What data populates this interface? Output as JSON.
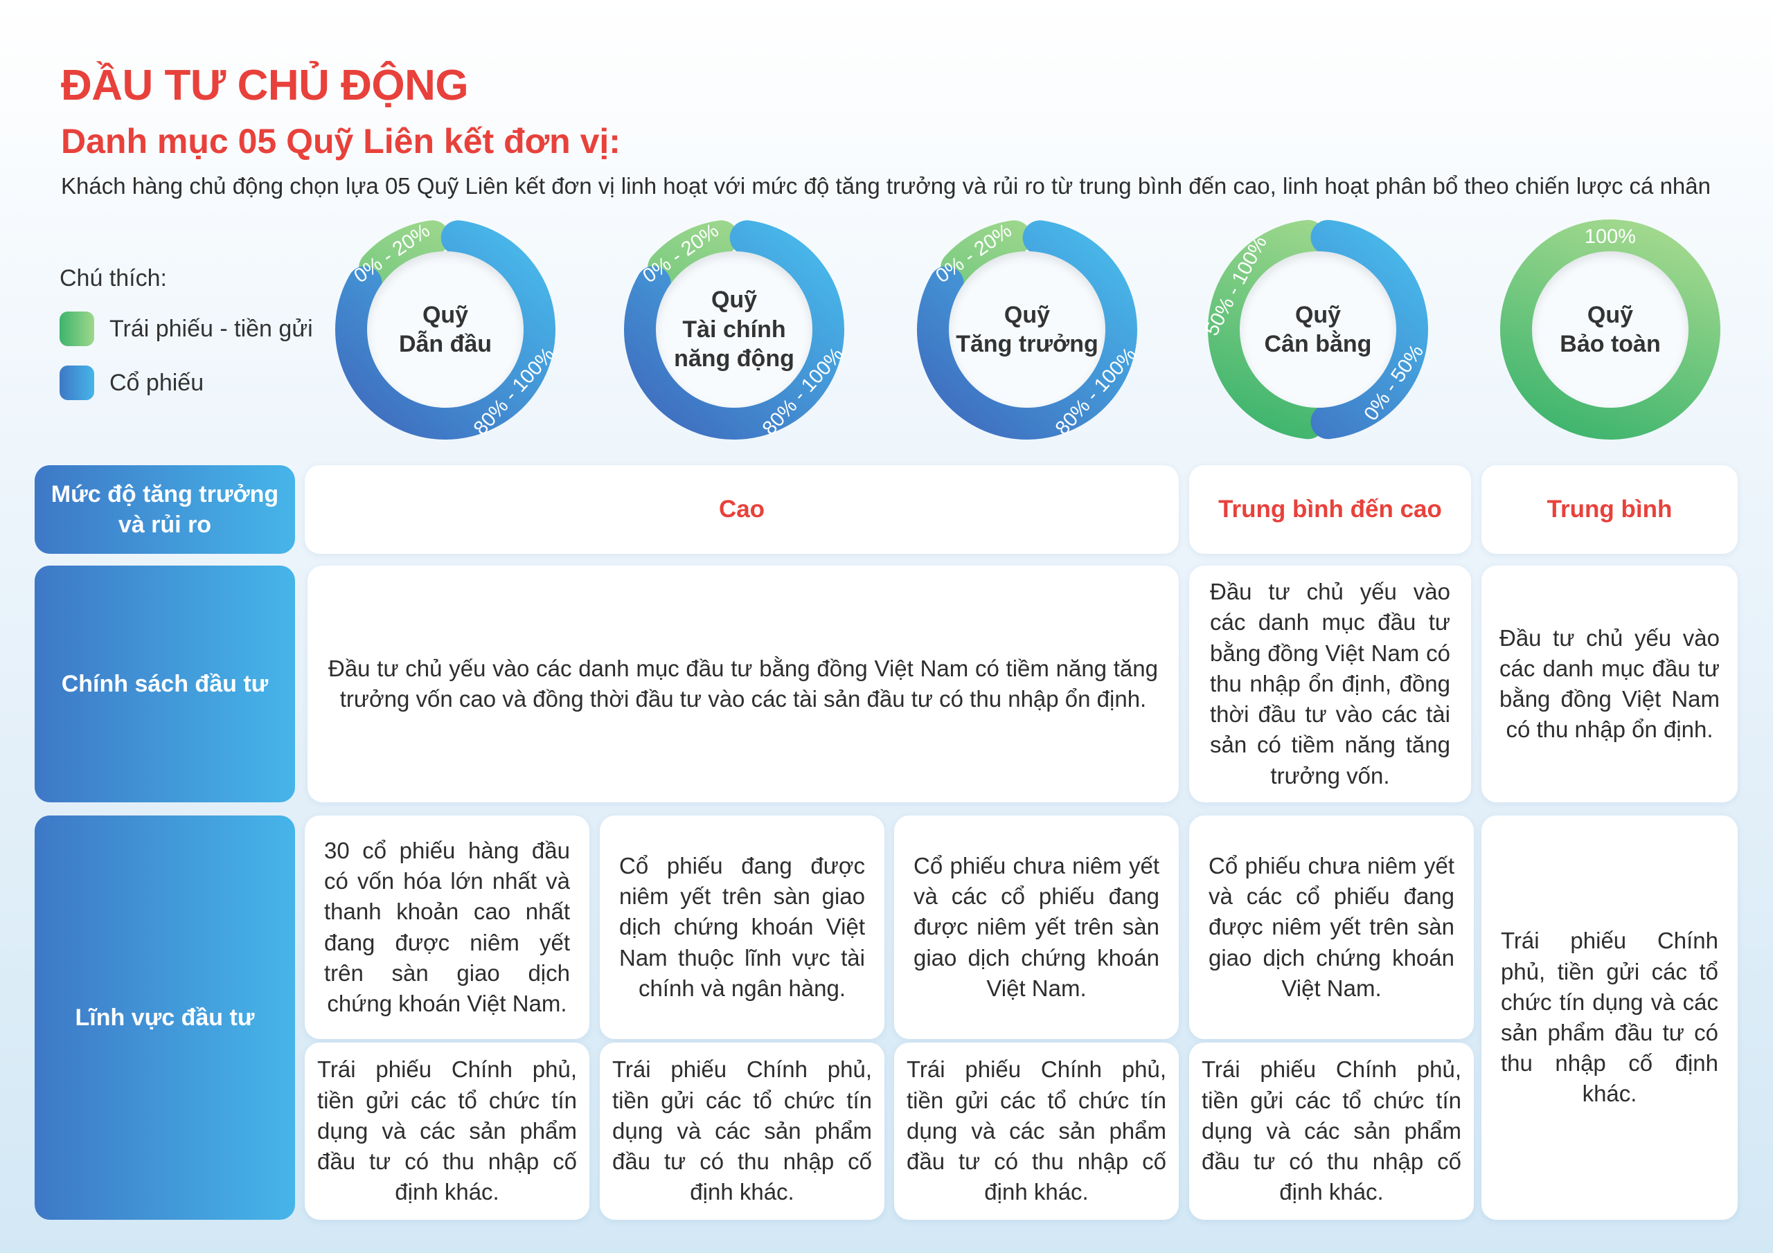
{
  "header": {
    "title": "ĐẦU TƯ CHỦ ĐỘNG",
    "subtitle": "Danh mục 05 Quỹ Liên kết đơn vị:",
    "intro": "Khách hàng chủ động chọn lựa 05 Quỹ Liên kết đơn vị linh hoạt với mức độ tăng trưởng và rủi ro từ trung bình đến cao, linh hoạt phân bổ theo chiến lược cá nhân"
  },
  "legend": {
    "title": "Chú thích:",
    "items": [
      {
        "label": "Trái phiếu - tiền gửi",
        "color_from": "#3db46d",
        "color_to": "#9ed88b"
      },
      {
        "label": "Cổ phiếu",
        "color_from": "#3e78c6",
        "color_to": "#46b5e9"
      }
    ]
  },
  "funds": [
    {
      "name": "Quỹ\nDẫn đầu",
      "bond_label": "0% - 20%",
      "stock_label": "80% - 100%",
      "bond_share": 0.1
    },
    {
      "name": "Quỹ\nTài chính\nnăng động",
      "bond_label": "0% - 20%",
      "stock_label": "80% - 100%",
      "bond_share": 0.1
    },
    {
      "name": "Quỹ\nTăng trưởng",
      "bond_label": "0% - 20%",
      "stock_label": "80% - 100%",
      "bond_share": 0.1
    },
    {
      "name": "Quỹ\nCân bằng",
      "bond_label": "50% - 100%",
      "stock_label": "0% - 50%",
      "bond_share": 0.5
    },
    {
      "name": "Quỹ\nBảo toàn",
      "bond_label": "100%",
      "stock_label": "",
      "bond_share": 1.0
    }
  ],
  "table": {
    "row_headers": {
      "risk": "Mức độ tăng trưởng\nvà rủi ro",
      "policy": "Chính sách đầu tư",
      "sector": "Lĩnh vực đầu tư"
    },
    "risk_levels": {
      "high": "Cao",
      "medium_high": "Trung bình đến cao",
      "medium": "Trung bình"
    },
    "policy": {
      "high": "Đầu tư chủ yếu vào các danh mục đầu tư bằng đồng Việt Nam có tiềm năng tăng trưởng vốn cao và đồng thời đầu tư vào các tài sản đầu tư có thu nhập ổn định.",
      "medium_high": "Đầu tư chủ yếu vào các danh mục đầu tư bằng đồng Việt Nam có thu nhập ổn định, đồng thời đầu tư vào các tài sản có tiềm năng tăng trưởng vốn.",
      "medium": "Đầu tư chủ yếu vào các danh mục đầu tư bằng đồng Việt Nam có thu nhập ổn định."
    },
    "sector_stock": [
      "30 cổ phiếu hàng đầu có vốn hóa lớn nhất và thanh khoản cao nhất đang được niêm yết trên sàn giao dịch chứng khoán Việt Nam.",
      "Cổ phiếu đang được niêm yết trên sàn giao dịch chứng khoán Việt Nam thuộc lĩnh vực tài chính và ngân hàng.",
      "Cổ phiếu chưa niêm yết và các cổ phiếu đang được niêm yết trên sàn giao dịch chứng khoán Việt Nam.",
      "Cổ phiếu chưa niêm yết và các cổ phiếu đang được niêm yết trên sàn giao dịch chứng khoán Việt Nam."
    ],
    "sector_bond": [
      "Trái phiếu Chính phủ, tiền gửi các tổ chức tín dụng và các sản phẩm đầu tư có thu nhập cố định khác.",
      "Trái phiếu Chính phủ, tiền gửi các tổ chức tín dụng và các sản phẩm đầu tư có thu nhập cố định khác.",
      "Trái phiếu Chính phủ, tiền gửi các tổ chức tín dụng và các sản phẩm đầu tư có thu nhập cố định khác.",
      "Trái phiếu Chính phủ, tiền gửi các tổ chức tín dụng và các sản phẩm đầu tư có thu nhập cố định khác."
    ],
    "sector_preservation": "Trái phiếu Chính phủ, tiền gửi các tổ chức tín dụng và các sản phẩm đầu tư có thu nhập cố định khác."
  }
}
